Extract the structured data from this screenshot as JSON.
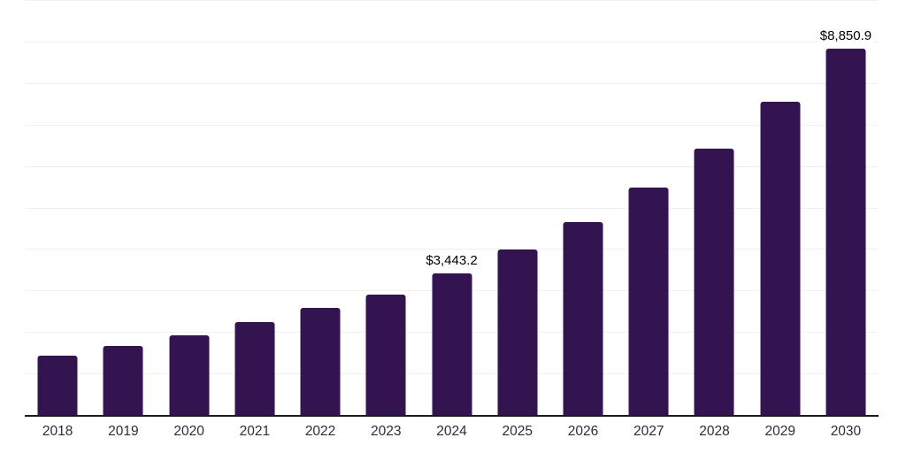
{
  "chart_data": {
    "type": "bar",
    "title": "",
    "xlabel": "",
    "ylabel": "",
    "categories": [
      "2018",
      "2019",
      "2020",
      "2021",
      "2022",
      "2023",
      "2024",
      "2025",
      "2026",
      "2027",
      "2028",
      "2029",
      "2030"
    ],
    "values": [
      1450,
      1690,
      1940,
      2260,
      2600,
      2920,
      3443.2,
      4010,
      4670,
      5500,
      6440,
      7570,
      8850.9
    ],
    "data_labels": {
      "2024": "$3,443.2",
      "2030": "$8,850.9"
    },
    "ylim": [
      0,
      10000
    ],
    "gridline_step": 1000,
    "grid": "horizontal",
    "legend_position": "none",
    "colors": {
      "bar": "#341351",
      "axis_line": "#1a1a1a",
      "gridline": "#f1f1f1",
      "tick_label": "#2e2e2e",
      "data_label": "#000000",
      "background": "#ffffff"
    }
  }
}
